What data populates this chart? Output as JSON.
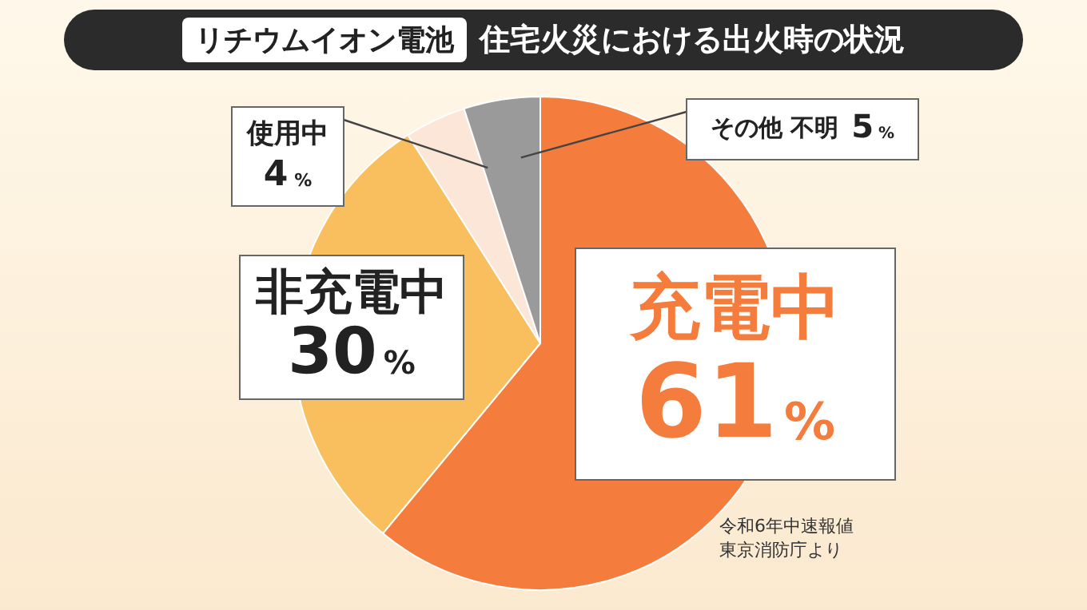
{
  "chart_data": {
    "type": "pie",
    "title": "リチウムイオン電池 住宅火災における出火時の状況",
    "categories": [
      "充電中",
      "非充電中",
      "使用中",
      "その他 不明"
    ],
    "values": [
      61,
      30,
      4,
      5
    ],
    "colors": [
      "#f47c3c",
      "#f9bf5e",
      "#fbe6d8",
      "#9a9a9a"
    ],
    "value_labels": [
      "61%",
      "30%",
      "4%",
      "5%"
    ],
    "annotations": [
      "令和6年中速報値",
      "東京消防庁より"
    ],
    "legend": false
  }
}
